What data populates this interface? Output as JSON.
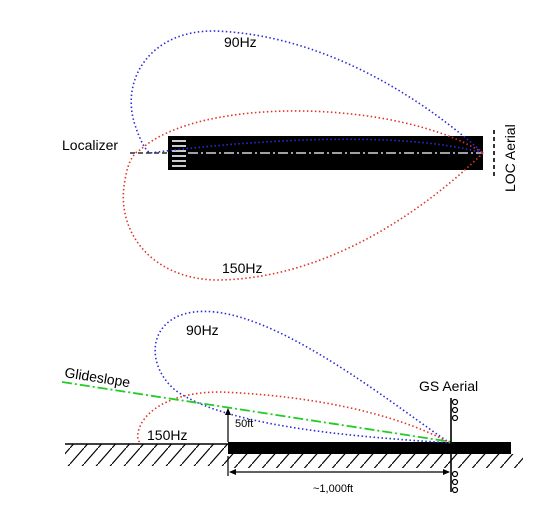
{
  "localizer": {
    "lobe_top_label": "90Hz",
    "lobe_bottom_label": "150Hz",
    "left_label": "Localizer",
    "aerial_label": "LOC Aerial"
  },
  "glideslope": {
    "upper_lobe_label": "90Hz",
    "lower_lobe_label": "150Hz",
    "path_label": "Glideslope",
    "aerial_label": "GS Aerial",
    "height_label": "50ft",
    "distance_label": "~1,000ft"
  },
  "colors": {
    "lobe_90hz": "#2b2bd6",
    "lobe_150hz": "#e0342a",
    "glidepath": "#22cc22",
    "runway": "#000000"
  }
}
